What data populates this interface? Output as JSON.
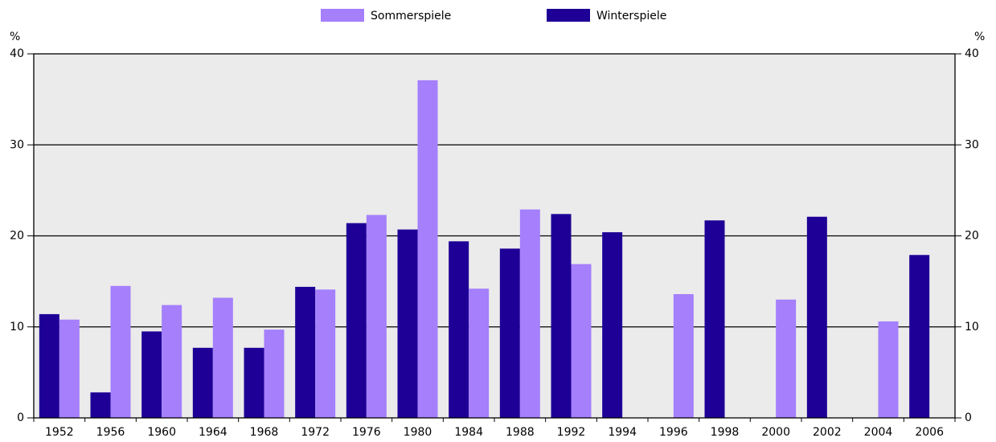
{
  "chart_data": {
    "type": "bar",
    "ylabel": "%",
    "categories": [
      "1952",
      "1956",
      "1960",
      "1964",
      "1968",
      "1972",
      "1976",
      "1980",
      "1984",
      "1988",
      "1992",
      "1994",
      "1996",
      "1998",
      "2000",
      "2002",
      "2004",
      "2006"
    ],
    "series": [
      {
        "name": "Winterspiele",
        "color": "#1e0096",
        "values": [
          11.4,
          2.8,
          9.5,
          7.7,
          7.7,
          14.4,
          21.4,
          20.7,
          19.4,
          18.6,
          22.4,
          20.4,
          null,
          21.7,
          null,
          22.1,
          null,
          17.9
        ]
      },
      {
        "name": "Sommerspiele",
        "color": "#a57ffc",
        "values": [
          10.8,
          14.5,
          12.4,
          13.2,
          9.7,
          14.1,
          22.3,
          37.1,
          14.2,
          22.9,
          16.9,
          null,
          13.6,
          null,
          13.0,
          null,
          10.6,
          null
        ]
      }
    ],
    "ylim": [
      0,
      40
    ],
    "yticks": [
      0,
      10,
      20,
      30,
      40
    ],
    "grid": true
  }
}
